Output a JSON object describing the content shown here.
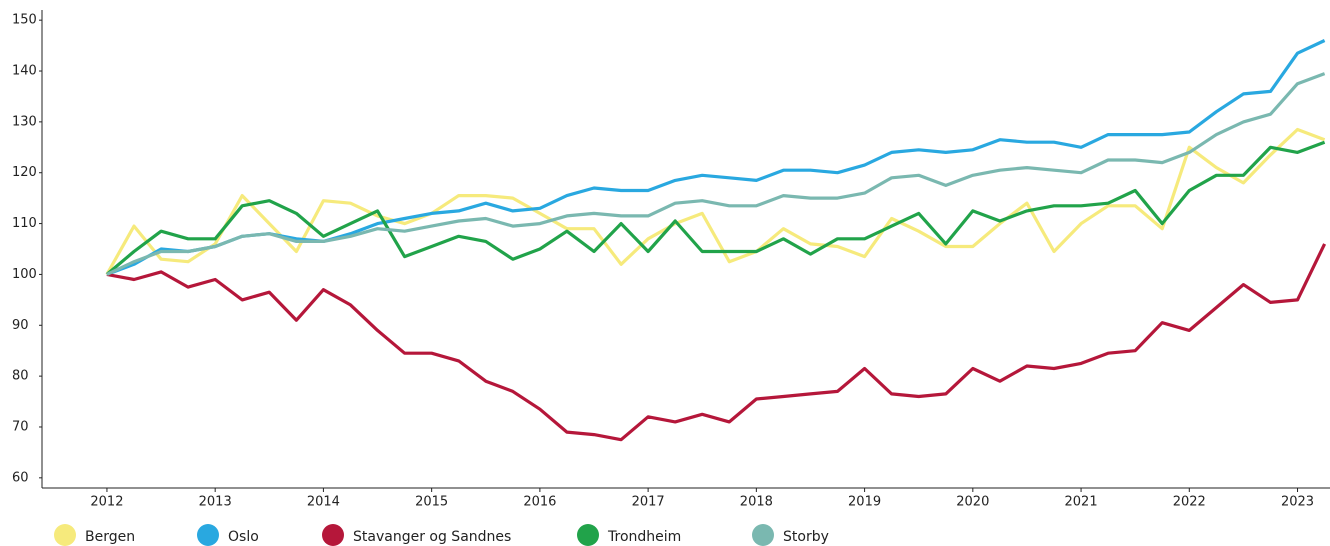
{
  "chart_data": {
    "type": "line",
    "x": [
      2012,
      2012.25,
      2012.5,
      2012.75,
      2013,
      2013.25,
      2013.5,
      2013.75,
      2014,
      2014.25,
      2014.5,
      2014.75,
      2015,
      2015.25,
      2015.5,
      2015.75,
      2016,
      2016.25,
      2016.5,
      2016.75,
      2017,
      2017.25,
      2017.5,
      2017.75,
      2018,
      2018.25,
      2018.5,
      2018.75,
      2019,
      2019.25,
      2019.5,
      2019.75,
      2020,
      2020.25,
      2020.5,
      2020.75,
      2021,
      2021.25,
      2021.5,
      2021.75,
      2022,
      2022.25,
      2022.5,
      2022.75,
      2023,
      2023.25
    ],
    "series": [
      {
        "name": "Bergen",
        "color": "#f6ea7c",
        "values": [
          100,
          109.5,
          103,
          102.5,
          106,
          115.5,
          110,
          104.5,
          114.5,
          114,
          111.5,
          110,
          112,
          115.5,
          115.5,
          115,
          112,
          109,
          109,
          102,
          107,
          110,
          112,
          102.5,
          104.5,
          109,
          106,
          105.5,
          103.5,
          111,
          108.5,
          105.5,
          105.5,
          110,
          114,
          104.5,
          110,
          113.5,
          113.5,
          109,
          125,
          121,
          118,
          123.5,
          128.5,
          126.5
        ]
      },
      {
        "name": "Oslo",
        "color": "#29a8e0",
        "values": [
          100,
          102,
          105,
          104.5,
          105.5,
          107.5,
          108,
          107,
          106.5,
          108,
          110,
          111,
          112,
          112.5,
          114,
          112.5,
          113,
          115.5,
          117,
          116.5,
          116.5,
          118.5,
          119.5,
          119,
          118.5,
          120.5,
          120.5,
          120,
          121.5,
          124,
          124.5,
          124,
          124.5,
          126.5,
          126,
          126,
          125,
          127.5,
          127.5,
          127.5,
          128,
          132,
          135.5,
          136,
          143.5,
          146
        ]
      },
      {
        "name": "Stavanger og Sandnes",
        "color": "#b5173a",
        "values": [
          100,
          99,
          100.5,
          97.5,
          99,
          95,
          96.5,
          91,
          97,
          94,
          89,
          84.5,
          84.5,
          83,
          79,
          77,
          73.5,
          69,
          68.5,
          67.5,
          72,
          71,
          72.5,
          71,
          75.5,
          76,
          76.5,
          77,
          81.5,
          76.5,
          76,
          76.5,
          81.5,
          79,
          82,
          81.5,
          82.5,
          84.5,
          85,
          90.5,
          89,
          93.5,
          98,
          94.5,
          95,
          106
        ]
      },
      {
        "name": "Trondheim",
        "color": "#21a34a",
        "values": [
          100,
          104.5,
          108.5,
          107,
          107,
          113.5,
          114.5,
          112,
          107.5,
          110,
          112.5,
          103.5,
          105.5,
          107.5,
          106.5,
          103,
          105,
          108.5,
          104.5,
          110,
          104.5,
          110.5,
          104.5,
          104.5,
          104.5,
          107,
          104,
          107,
          107,
          109.5,
          112,
          106,
          112.5,
          110.5,
          112.5,
          113.5,
          113.5,
          114,
          116.5,
          110,
          116.5,
          119.5,
          119.5,
          125,
          124,
          126
        ]
      },
      {
        "name": "Storby",
        "color": "#7ab8b0",
        "values": [
          100,
          102.5,
          104.5,
          104.5,
          105.5,
          107.5,
          108,
          106.5,
          106.5,
          107.5,
          109,
          108.5,
          109.5,
          110.5,
          111,
          109.5,
          110,
          111.5,
          112,
          111.5,
          111.5,
          114,
          114.5,
          113.5,
          113.5,
          115.5,
          115,
          115,
          116,
          119,
          119.5,
          117.5,
          119.5,
          120.5,
          121,
          120.5,
          120,
          122.5,
          122.5,
          122,
          124,
          127.5,
          130,
          131.5,
          137.5,
          139.5
        ]
      }
    ],
    "xlim": [
      2011.4,
      2023.3
    ],
    "xticks": [
      2012,
      2013,
      2014,
      2015,
      2016,
      2017,
      2018,
      2019,
      2020,
      2021,
      2022,
      2023
    ],
    "ylim": [
      58,
      152
    ],
    "yticks": [
      60,
      70,
      80,
      90,
      100,
      110,
      120,
      130,
      140,
      150
    ]
  }
}
